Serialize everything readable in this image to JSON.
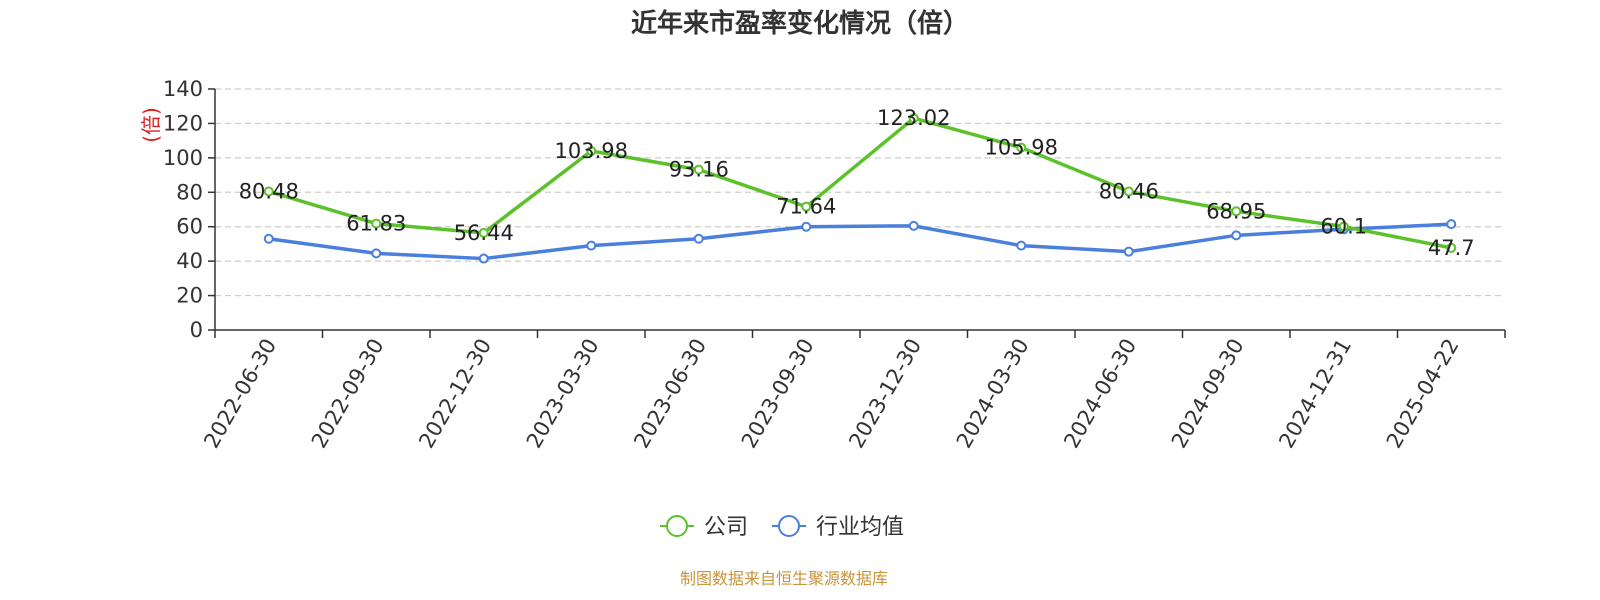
{
  "chart_data": {
    "type": "line",
    "title": "近年来市盈率变化情况（倍）",
    "ylabel": "(倍)",
    "xlabel": "",
    "categories": [
      "2022-06-30",
      "2022-09-30",
      "2022-12-30",
      "2023-03-30",
      "2023-06-30",
      "2023-09-30",
      "2023-12-30",
      "2024-03-30",
      "2024-06-30",
      "2024-09-30",
      "2024-12-31",
      "2025-04-22"
    ],
    "ylim": [
      0,
      140
    ],
    "yticks": [
      0,
      20,
      40,
      60,
      80,
      100,
      120,
      140
    ],
    "grid": true,
    "legend_position": "bottom",
    "series": [
      {
        "name": "公司",
        "color": "#5cc12a",
        "values": [
          80.48,
          61.83,
          56.44,
          103.98,
          93.16,
          71.64,
          123.02,
          105.98,
          80.46,
          68.95,
          60.1,
          47.7
        ],
        "labels": [
          "80.48",
          "61.83",
          "56.44",
          "103.98",
          "93.16",
          "71.64",
          "123.02",
          "105.98",
          "80.46",
          "68.95",
          "60.1",
          "47.7"
        ]
      },
      {
        "name": "行业均值",
        "color": "#4a7fde",
        "values": [
          53,
          44.5,
          41.5,
          49,
          53,
          60,
          60.5,
          49,
          45.5,
          55,
          58.5,
          61.5
        ]
      }
    ],
    "source": "制图数据来自恒生聚源数据库"
  }
}
